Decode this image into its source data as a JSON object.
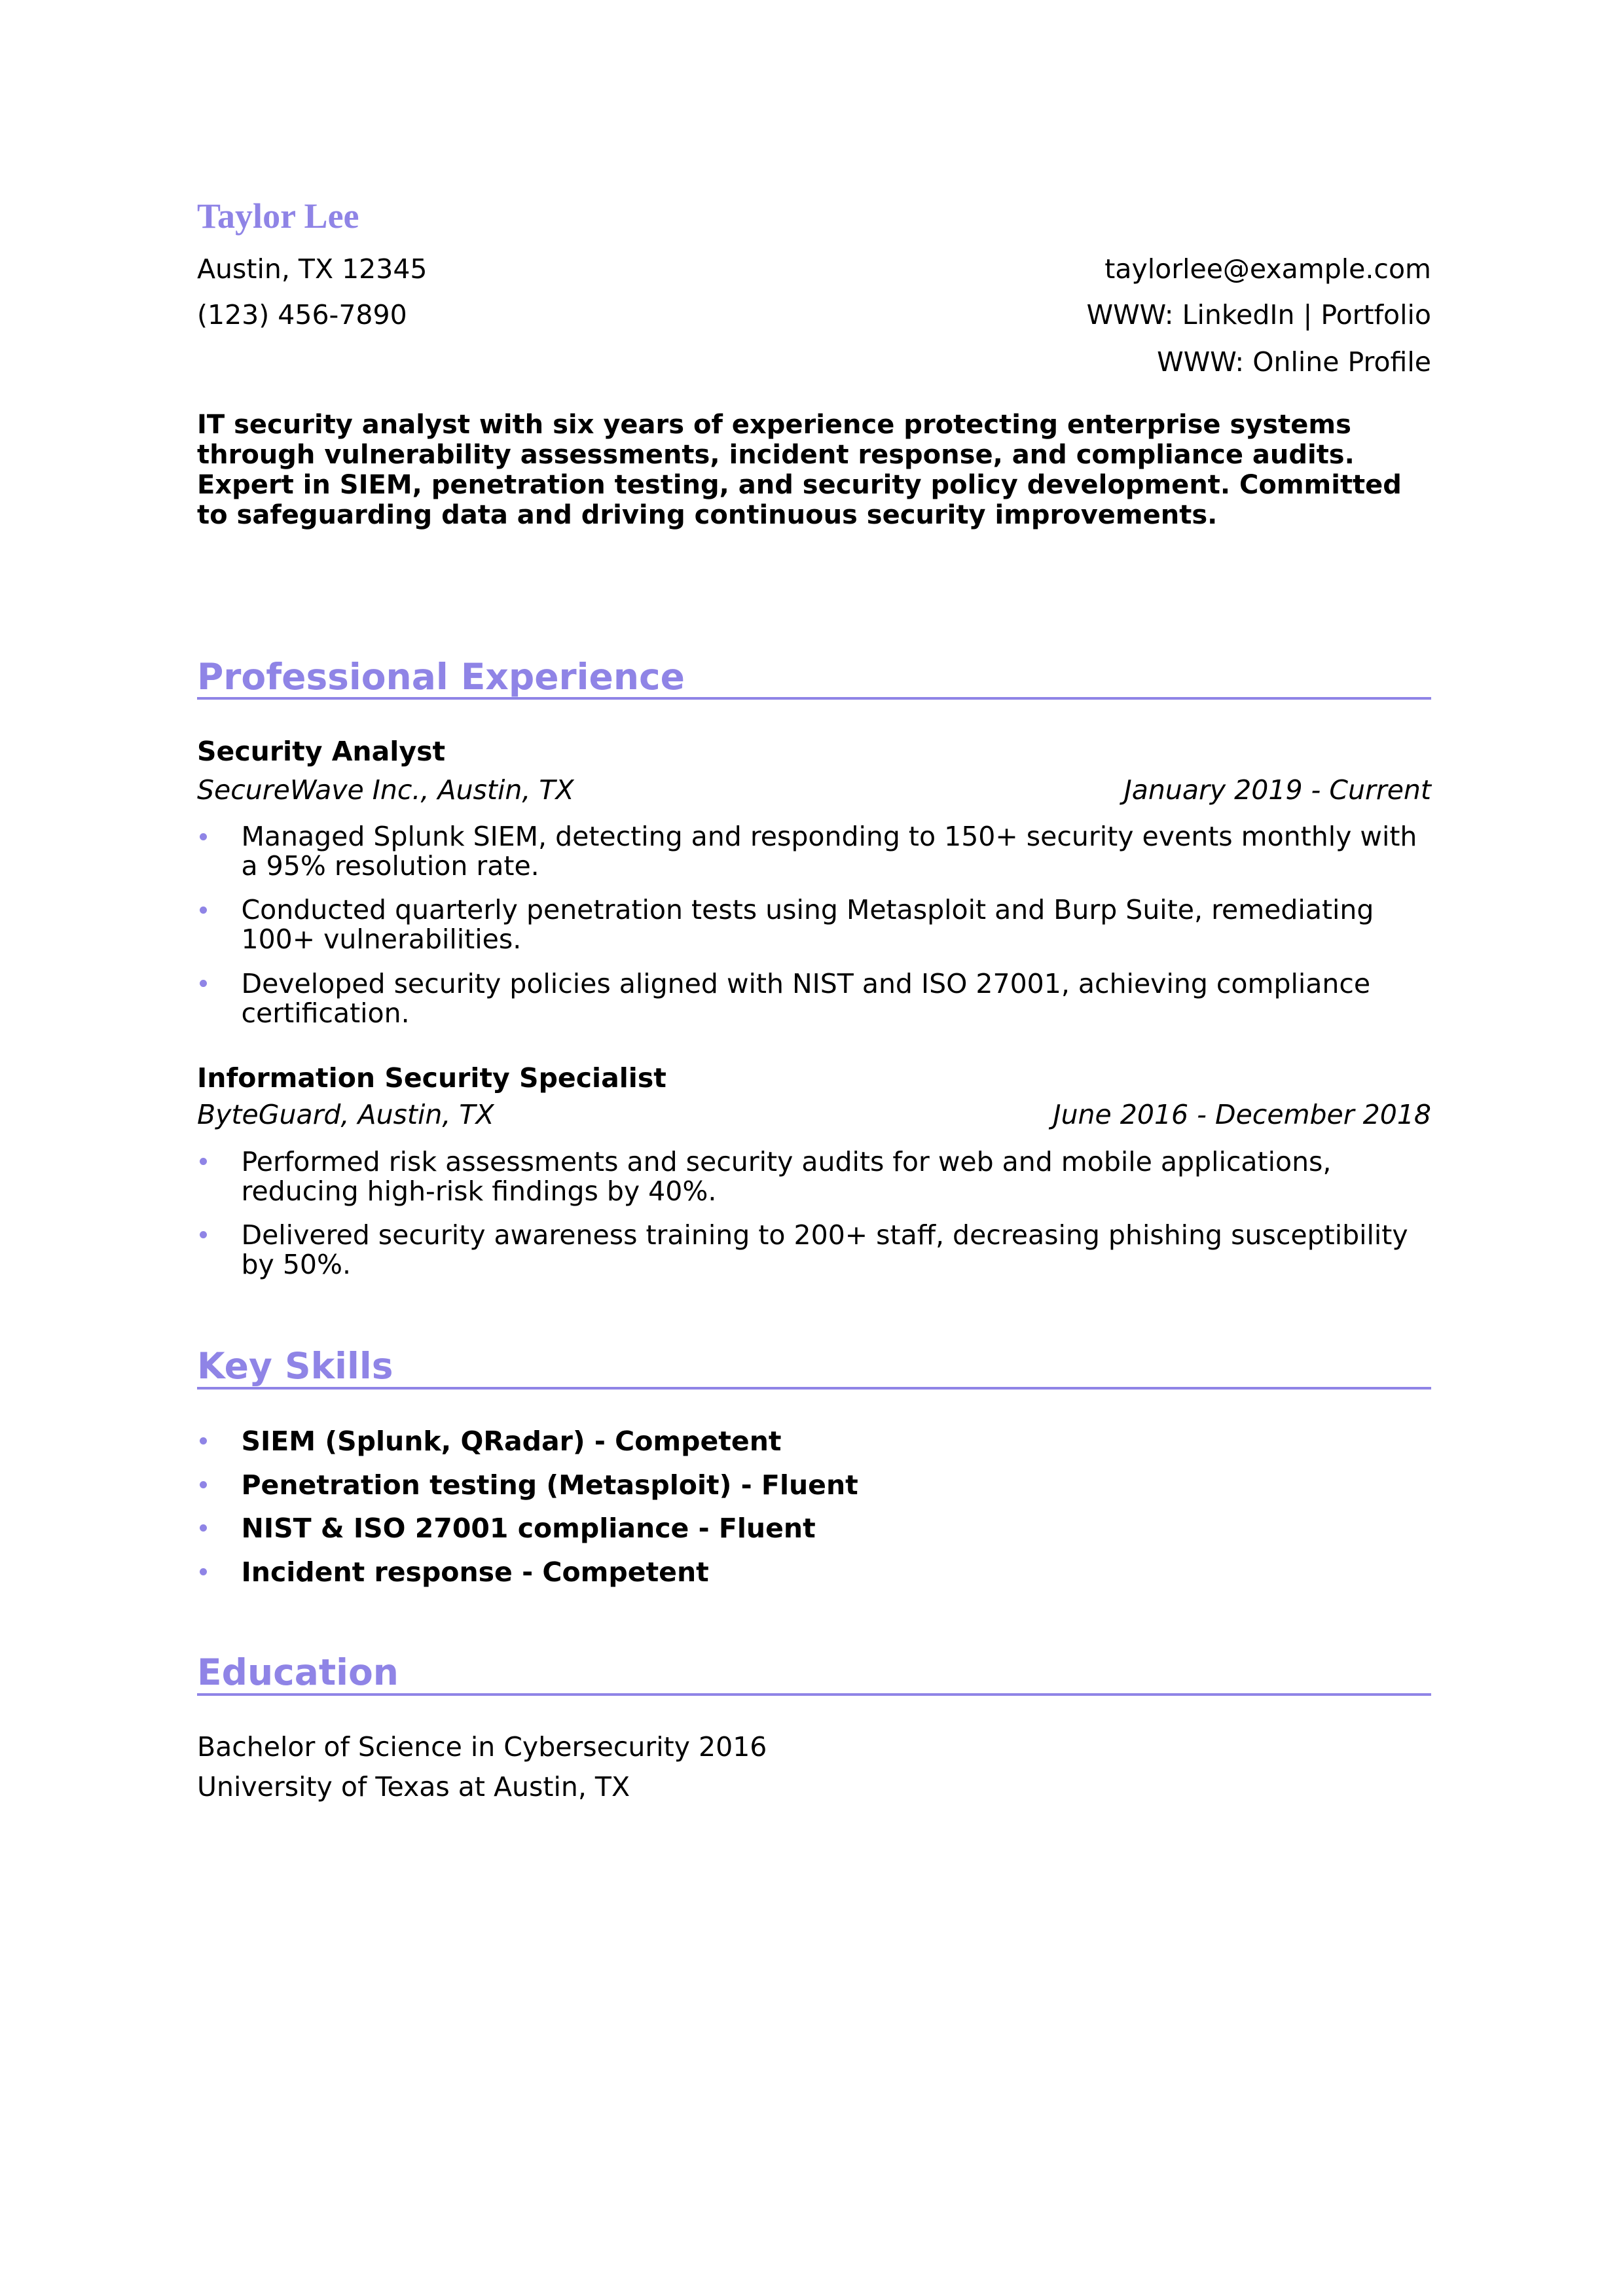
{
  "header": {
    "name": "Taylor Lee",
    "location": "Austin, TX 12345",
    "phone": "(123) 456-7890",
    "email": "taylorlee@example.com",
    "links": [
      "WWW: LinkedIn | Portfolio",
      "WWW: Online Profile"
    ]
  },
  "summary": "IT security analyst with six years of experience protecting enterprise systems through vulnerability assessments, incident response, and compliance audits. Expert in SIEM, penetration testing, and security policy development. Committed to safeguarding data and driving continuous security improvements.",
  "experience": {
    "heading": "Professional Experience",
    "jobs": [
      {
        "title": "Security Analyst",
        "company": "SecureWave Inc., Austin, TX",
        "dates": "January 2019 - Current",
        "bullets": [
          "Managed Splunk SIEM, detecting and responding to 150+ security events monthly with a 95% resolution rate.",
          "Conducted quarterly penetration tests using Metasploit and Burp Suite, remediating 100+ vulnerabilities.",
          "Developed security policies aligned with NIST and ISO 27001, achieving compliance certification."
        ]
      },
      {
        "title": "Information Security Specialist",
        "company": "ByteGuard, Austin, TX",
        "dates": "June 2016 - December 2018",
        "bullets": [
          "Performed risk assessments and security audits for web and mobile applications, reducing high-risk findings by 40%.",
          "Delivered security awareness training to 200+ staff, decreasing phishing susceptibility by 50%."
        ]
      }
    ]
  },
  "skills": {
    "heading": "Key Skills",
    "items": [
      "SIEM (Splunk, QRadar) - Competent",
      "Penetration testing (Metasploit) - Fluent",
      "NIST & ISO 27001 compliance - Fluent",
      "Incident response - Competent"
    ]
  },
  "education": {
    "heading": "Education",
    "degree": "Bachelor of Science in Cybersecurity 2016",
    "school": "University of Texas at Austin, TX"
  }
}
